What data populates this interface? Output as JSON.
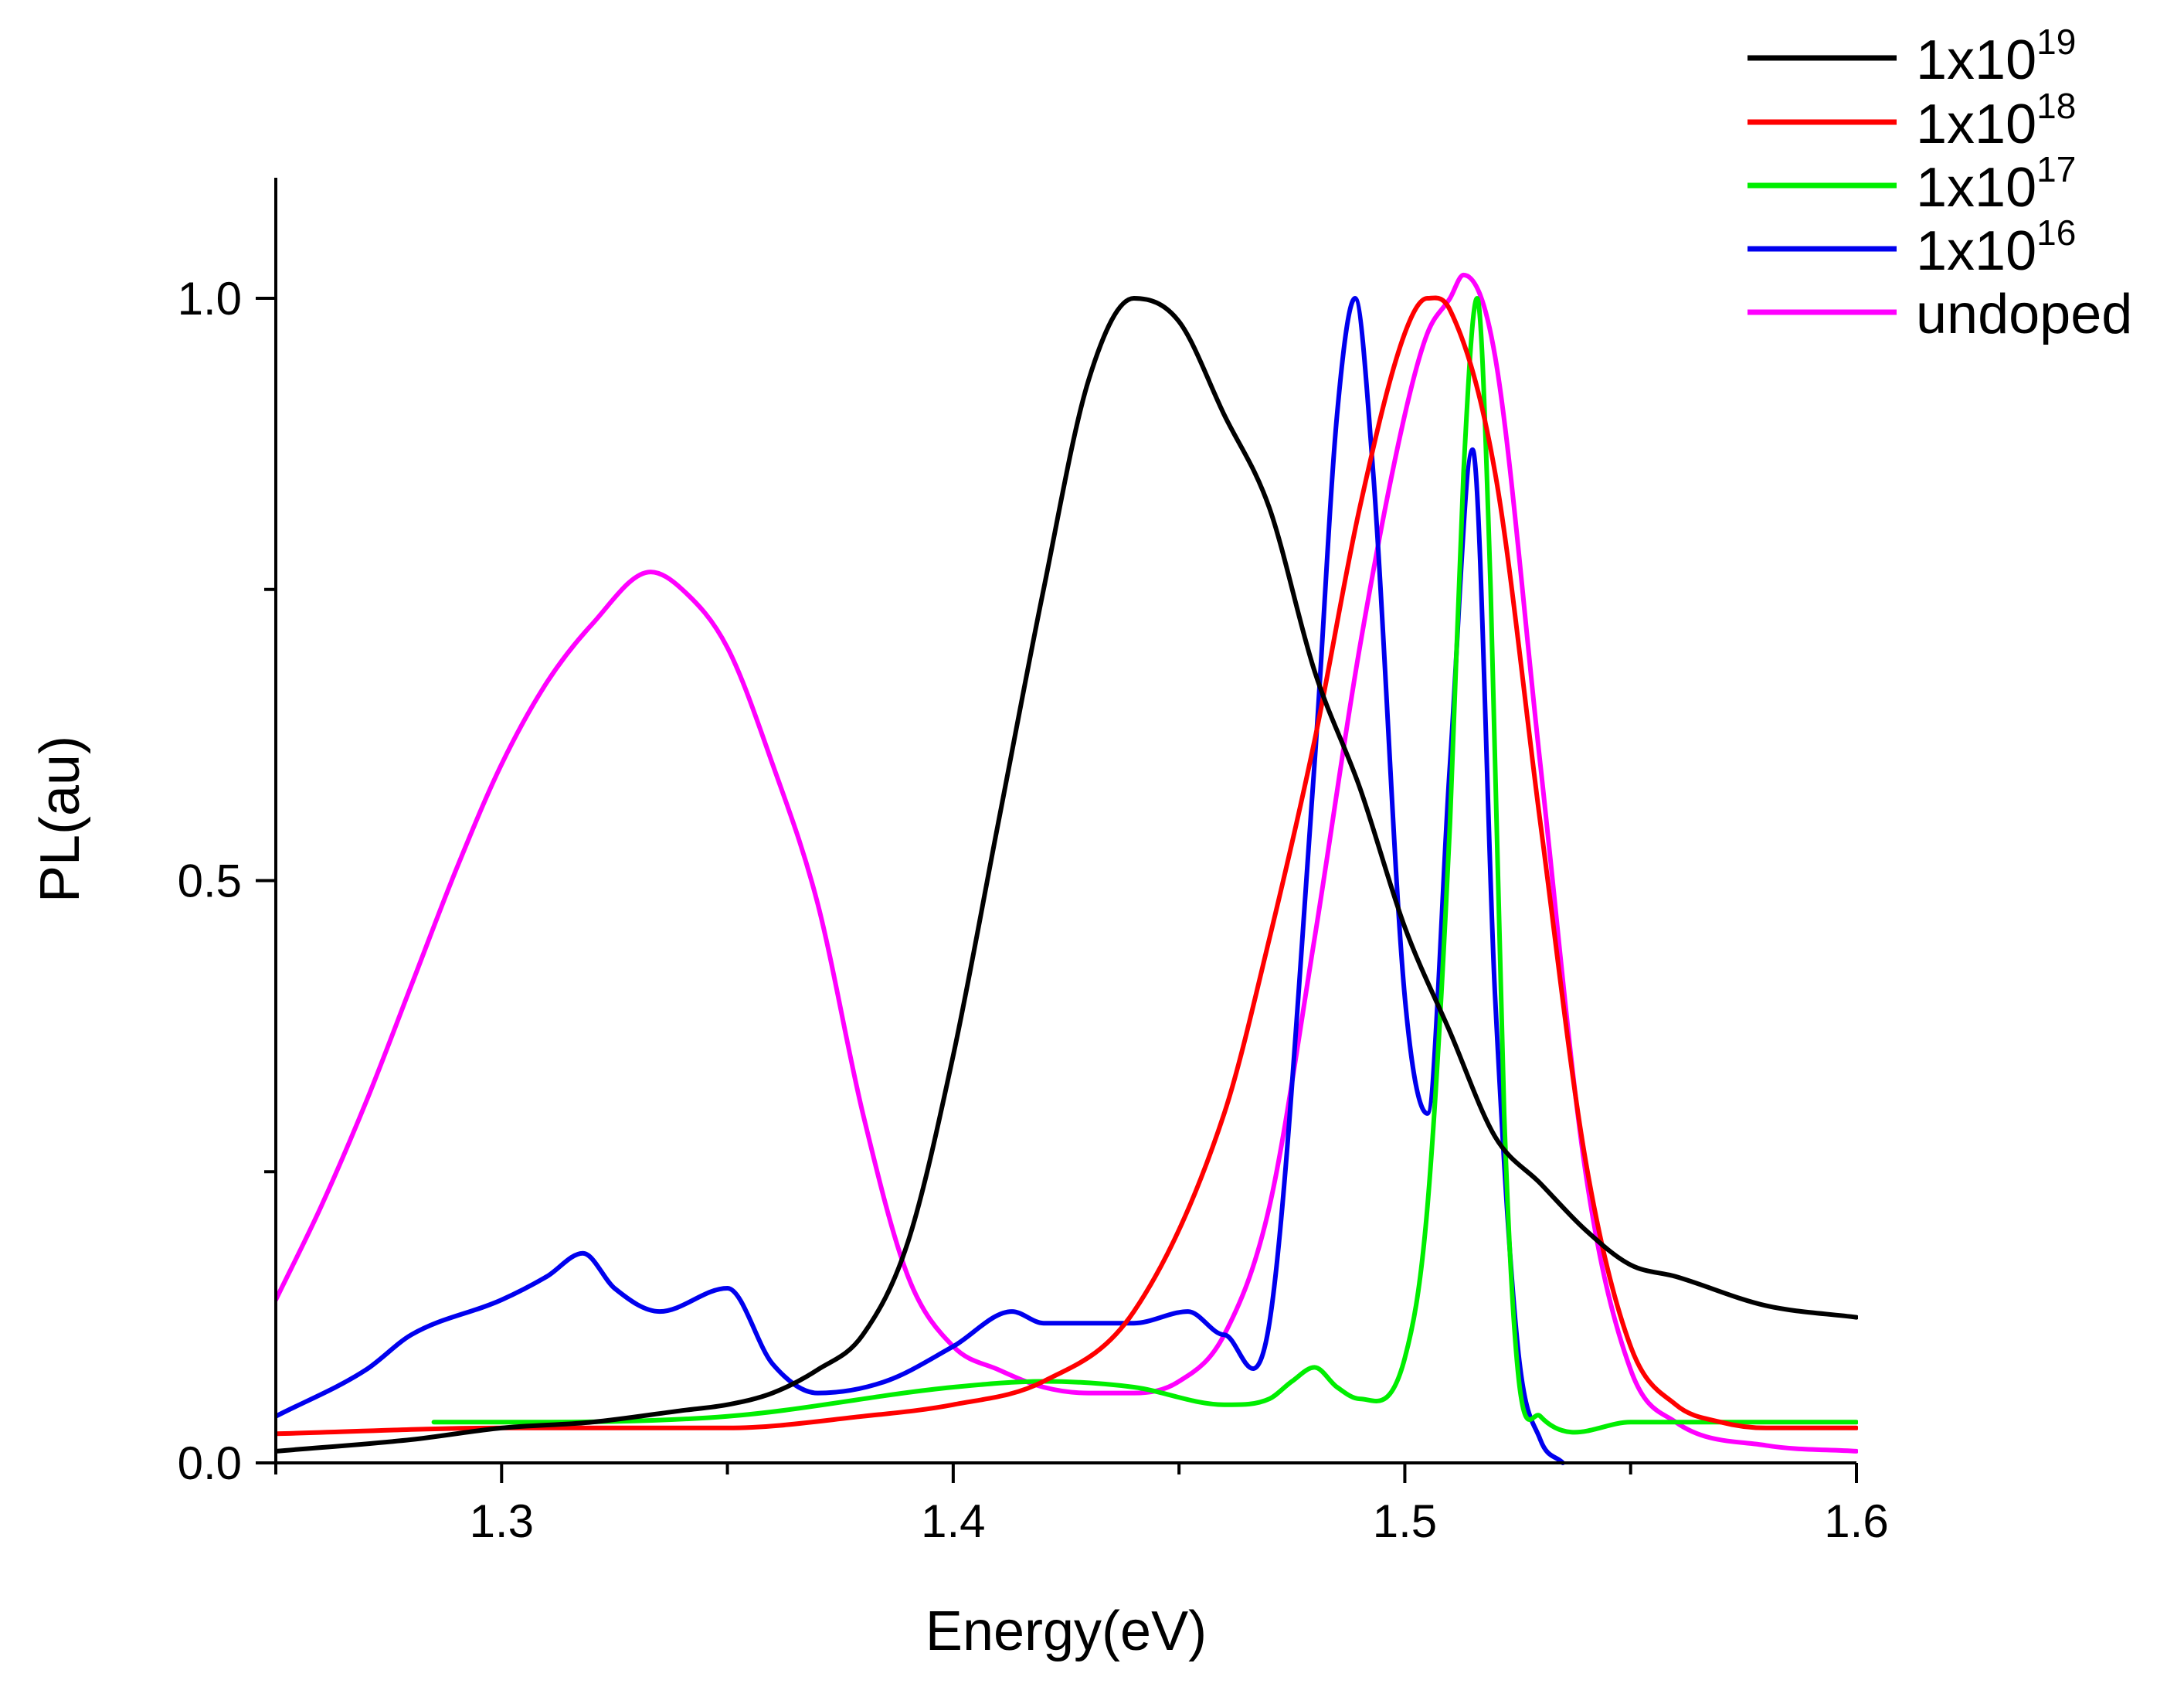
{
  "chart_data": {
    "type": "line",
    "title": "",
    "xlabel": "Energy(eV)",
    "ylabel": "PL(au)",
    "xlim": [
      1.25,
      1.6
    ],
    "ylim": [
      0.0,
      1.1
    ],
    "x_ticks": [
      {
        "value": 1.3,
        "label": "1.3"
      },
      {
        "value": 1.4,
        "label": "1.4"
      },
      {
        "value": 1.5,
        "label": "1.5"
      },
      {
        "value": 1.6,
        "label": "1.6"
      }
    ],
    "y_ticks": [
      {
        "value": 0.0,
        "label": "0.0"
      },
      {
        "value": 0.5,
        "label": "0.5"
      },
      {
        "value": 1.0,
        "label": "1.0"
      }
    ],
    "x_minor_ticks": [
      1.25,
      1.35,
      1.45,
      1.55
    ],
    "y_minor_ticks": [
      0.25,
      0.75
    ],
    "grid": false,
    "legend_position": "top-right",
    "series": [
      {
        "name": "1x10^19",
        "base": "1x10",
        "exponent": "19",
        "color": "#000000",
        "x": [
          1.25,
          1.28,
          1.3,
          1.32,
          1.34,
          1.35,
          1.36,
          1.37,
          1.38,
          1.39,
          1.4,
          1.41,
          1.42,
          1.43,
          1.44,
          1.45,
          1.46,
          1.47,
          1.48,
          1.49,
          1.5,
          1.51,
          1.52,
          1.53,
          1.54,
          1.55,
          1.56,
          1.58,
          1.6
        ],
        "y": [
          0.01,
          0.02,
          0.03,
          0.035,
          0.045,
          0.05,
          0.06,
          0.08,
          0.11,
          0.19,
          0.35,
          0.55,
          0.75,
          0.93,
          1.0,
          0.98,
          0.9,
          0.82,
          0.68,
          0.58,
          0.46,
          0.37,
          0.28,
          0.24,
          0.2,
          0.17,
          0.16,
          0.135,
          0.125
        ]
      },
      {
        "name": "1x10^18",
        "base": "1x10",
        "exponent": "18",
        "color": "#ff0000",
        "x": [
          1.25,
          1.3,
          1.35,
          1.38,
          1.4,
          1.42,
          1.44,
          1.46,
          1.47,
          1.48,
          1.49,
          1.5,
          1.505,
          1.51,
          1.52,
          1.53,
          1.54,
          1.55,
          1.56,
          1.57,
          1.58,
          1.6
        ],
        "y": [
          0.025,
          0.03,
          0.03,
          0.04,
          0.05,
          0.07,
          0.13,
          0.3,
          0.45,
          0.62,
          0.82,
          0.97,
          1.0,
          0.99,
          0.85,
          0.55,
          0.26,
          0.1,
          0.05,
          0.035,
          0.03,
          0.03
        ]
      },
      {
        "name": "1x10^17",
        "base": "1x10",
        "exponent": "17",
        "color": "#00ee00",
        "x": [
          1.285,
          1.3,
          1.35,
          1.4,
          1.42,
          1.44,
          1.46,
          1.47,
          1.475,
          1.48,
          1.485,
          1.49,
          1.5,
          1.505,
          1.51,
          1.513,
          1.516,
          1.519,
          1.522,
          1.525,
          1.53,
          1.55,
          1.6
        ],
        "y": [
          0.035,
          0.035,
          0.04,
          0.065,
          0.07,
          0.065,
          0.05,
          0.055,
          0.07,
          0.082,
          0.065,
          0.055,
          0.09,
          0.22,
          0.55,
          0.85,
          1.0,
          0.75,
          0.3,
          0.08,
          0.04,
          0.035,
          0.035
        ]
      },
      {
        "name": "1x10^16",
        "base": "1x10",
        "exponent": "16",
        "color": "#0000ee",
        "x": [
          1.25,
          1.27,
          1.28,
          1.3,
          1.31,
          1.318,
          1.325,
          1.335,
          1.35,
          1.36,
          1.37,
          1.385,
          1.4,
          1.413,
          1.42,
          1.44,
          1.452,
          1.46,
          1.47,
          1.48,
          1.485,
          1.489,
          1.493,
          1.5,
          1.505,
          1.51,
          1.515,
          1.52,
          1.525,
          1.53,
          1.535
        ],
        "y": [
          0.04,
          0.08,
          0.11,
          0.14,
          0.16,
          0.18,
          0.15,
          0.13,
          0.15,
          0.085,
          0.06,
          0.07,
          0.1,
          0.13,
          0.12,
          0.12,
          0.13,
          0.11,
          0.12,
          0.6,
          0.9,
          1.0,
          0.85,
          0.4,
          0.3,
          0.6,
          0.87,
          0.4,
          0.1,
          0.02,
          0.0
        ]
      },
      {
        "name": "undoped",
        "base": "undoped",
        "exponent": "",
        "color": "#ff00ff",
        "x": [
          1.25,
          1.26,
          1.27,
          1.28,
          1.29,
          1.3,
          1.31,
          1.32,
          1.333,
          1.34,
          1.35,
          1.36,
          1.37,
          1.38,
          1.39,
          1.4,
          1.41,
          1.42,
          1.43,
          1.44,
          1.45,
          1.46,
          1.47,
          1.48,
          1.49,
          1.5,
          1.505,
          1.51,
          1.513,
          1.52,
          1.53,
          1.54,
          1.55,
          1.56,
          1.58,
          1.6
        ],
        "y": [
          0.14,
          0.22,
          0.31,
          0.41,
          0.51,
          0.6,
          0.67,
          0.72,
          0.765,
          0.75,
          0.7,
          0.6,
          0.48,
          0.3,
          0.16,
          0.1,
          0.08,
          0.065,
          0.06,
          0.06,
          0.07,
          0.11,
          0.22,
          0.45,
          0.7,
          0.9,
          0.97,
          1.0,
          1.02,
          0.95,
          0.6,
          0.25,
          0.08,
          0.035,
          0.015,
          0.01
        ]
      }
    ]
  }
}
